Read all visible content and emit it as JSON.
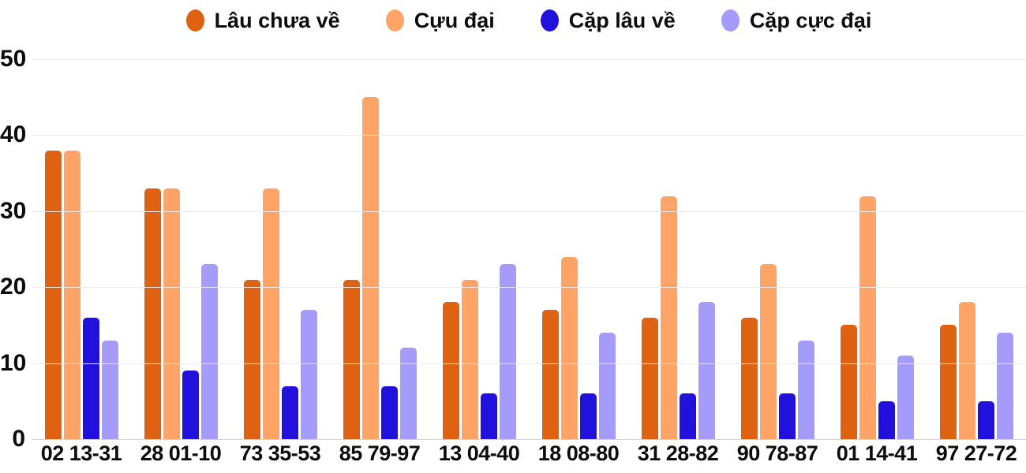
{
  "background_color": "#ffffff",
  "text_color": "#0d0d0d",
  "gridline_color": "#ebebeb",
  "baseline_color": "#d6d6d6",
  "chart_data": {
    "type": "bar",
    "title": "",
    "xlabel": "",
    "ylabel": "",
    "grid": true,
    "legend_position": "top",
    "ylim": [
      0,
      50
    ],
    "yticks": [
      0,
      10,
      20,
      30,
      40,
      50
    ],
    "categories": [
      "02 13-31",
      "28 01-10",
      "73 35-53",
      "85 79-97",
      "13 04-40",
      "18 08-80",
      "31 28-82",
      "90 78-87",
      "01 14-41",
      "97 27-72"
    ],
    "series": [
      {
        "name": "Lâu chưa về",
        "color": "#df6212",
        "values": [
          38,
          33,
          21,
          21,
          18,
          17,
          16,
          16,
          15,
          15
        ]
      },
      {
        "name": "Cựu đại",
        "color": "#ffa366",
        "values": [
          38,
          33,
          33,
          45,
          21,
          24,
          32,
          23,
          32,
          18
        ]
      },
      {
        "name": "Cặp lâu về",
        "color": "#2211dc",
        "values": [
          16,
          9,
          7,
          7,
          6,
          6,
          6,
          6,
          5,
          5
        ]
      },
      {
        "name": "Cặp cực đại",
        "color": "#a49bfa",
        "values": [
          13,
          23,
          17,
          12,
          23,
          14,
          18,
          13,
          11,
          14
        ]
      }
    ]
  }
}
